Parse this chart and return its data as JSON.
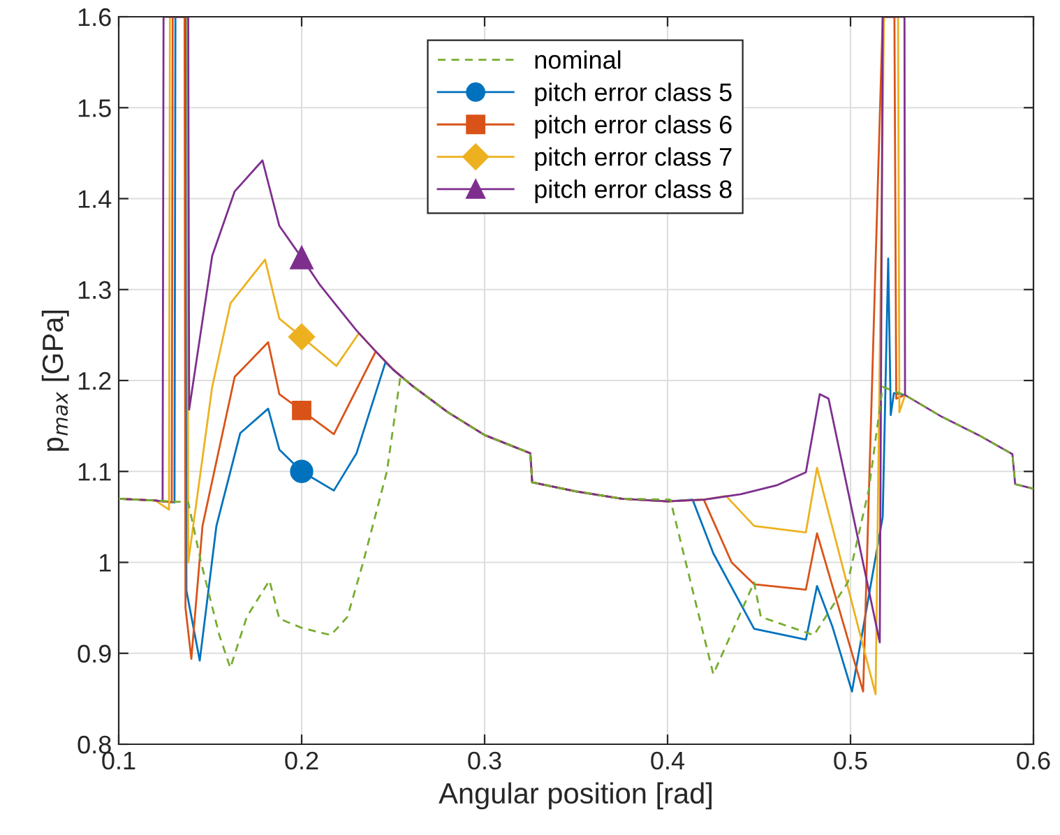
{
  "chart_data": {
    "type": "line",
    "xlabel": "Angular position [rad]",
    "ylabel": "p$_{max}$ [GPa]",
    "xlim": [
      0.1,
      0.6
    ],
    "ylim": [
      0.8,
      1.6
    ],
    "xticks": [
      0.1,
      0.2,
      0.3,
      0.4,
      0.5,
      0.6
    ],
    "yticks": [
      0.8,
      0.9,
      1,
      1.1,
      1.2,
      1.3,
      1.4,
      1.5,
      1.6
    ],
    "grid": true,
    "legend": "top",
    "series": [
      {
        "name": "nominal",
        "color": "#77ac30",
        "line_style": "dashed",
        "x": [
          0.1,
          0.12,
          0.138,
          0.145,
          0.155,
          0.161,
          0.17,
          0.1824,
          0.1878,
          0.2,
          0.216,
          0.225,
          0.2336,
          0.2466,
          0.254,
          0.26,
          0.28,
          0.3,
          0.325,
          0.326,
          0.35,
          0.375,
          0.4015,
          0.425,
          0.4473,
          0.451,
          0.48,
          0.4985,
          0.51,
          0.5176,
          0.5298,
          0.55,
          0.57,
          0.5885,
          0.59,
          0.6
        ],
        "values": [
          1.07,
          1.068,
          1.066,
          1.0,
          0.92,
          0.884,
          0.94,
          0.98,
          0.938,
          0.928,
          0.92,
          0.94,
          1.0,
          1.1,
          1.205,
          1.195,
          1.165,
          1.14,
          1.12,
          1.088,
          1.078,
          1.07,
          1.069,
          0.877,
          0.978,
          0.94,
          0.92,
          0.978,
          1.08,
          1.193,
          1.184,
          1.16,
          1.14,
          1.119,
          1.086,
          1.081
        ]
      },
      {
        "name": "pitch error class 5",
        "color": "#0072bd",
        "x": [
          0.1,
          0.12,
          0.1305,
          0.131,
          0.1365,
          0.137,
          0.1443,
          0.1534,
          0.1664,
          0.1817,
          0.1878,
          0.2,
          0.2176,
          0.23,
          0.2458,
          0.25,
          0.26,
          0.28,
          0.3,
          0.325,
          0.326,
          0.35,
          0.375,
          0.4,
          0.4137,
          0.425,
          0.4473,
          0.4756,
          0.4817,
          0.49,
          0.5008,
          0.5176,
          0.5206,
          0.522,
          0.5237,
          0.5298
        ],
        "values": [
          1.07,
          1.068,
          1.066,
          1.6,
          1.6,
          0.969,
          0.892,
          1.04,
          1.142,
          1.169,
          1.124,
          1.1,
          1.079,
          1.12,
          1.22,
          1.212,
          1.195,
          1.165,
          1.14,
          1.12,
          1.088,
          1.078,
          1.07,
          1.067,
          1.069,
          1.01,
          0.927,
          0.915,
          0.974,
          0.93,
          0.858,
          1.05,
          1.334,
          1.162,
          1.186,
          1.184
        ]
      },
      {
        "name": "pitch error class 6",
        "color": "#d95319",
        "x": [
          0.1,
          0.12,
          0.129,
          0.1295,
          0.136,
          0.1365,
          0.1397,
          0.1458,
          0.1634,
          0.1817,
          0.1878,
          0.2,
          0.2176,
          0.2405,
          0.25,
          0.26,
          0.28,
          0.3,
          0.325,
          0.326,
          0.35,
          0.375,
          0.4,
          0.4198,
          0.435,
          0.4473,
          0.4756,
          0.4817,
          0.5069,
          0.5176,
          0.524,
          0.525,
          0.5298
        ],
        "values": [
          1.07,
          1.068,
          1.066,
          1.6,
          1.6,
          0.95,
          0.894,
          1.04,
          1.204,
          1.242,
          1.185,
          1.167,
          1.141,
          1.232,
          1.212,
          1.195,
          1.165,
          1.14,
          1.12,
          1.088,
          1.078,
          1.07,
          1.067,
          1.069,
          1.0,
          0.976,
          0.97,
          1.032,
          0.858,
          1.6,
          1.6,
          1.18,
          1.184
        ]
      },
      {
        "name": "pitch error class 7",
        "color": "#edb120",
        "x": [
          0.1,
          0.12,
          0.1275,
          0.128,
          0.1375,
          0.138,
          0.1511,
          0.1611,
          0.18,
          0.1878,
          0.2,
          0.219,
          0.2313,
          0.2405,
          0.25,
          0.26,
          0.28,
          0.3,
          0.325,
          0.326,
          0.35,
          0.375,
          0.4,
          0.42,
          0.432,
          0.4473,
          0.4756,
          0.4817,
          0.5137,
          0.5183,
          0.526,
          0.5267,
          0.5298
        ],
        "values": [
          1.07,
          1.068,
          1.058,
          1.6,
          1.6,
          1.0,
          1.193,
          1.285,
          1.333,
          1.268,
          1.248,
          1.216,
          1.252,
          1.232,
          1.212,
          1.195,
          1.165,
          1.14,
          1.12,
          1.088,
          1.078,
          1.07,
          1.067,
          1.069,
          1.073,
          1.04,
          1.033,
          1.104,
          0.855,
          1.6,
          1.6,
          1.165,
          1.184
        ]
      },
      {
        "name": "pitch error class 8",
        "color": "#7e2f8e",
        "x": [
          0.1,
          0.12,
          0.124,
          0.1245,
          0.138,
          0.1385,
          0.1511,
          0.1634,
          0.1786,
          0.1878,
          0.2,
          0.21,
          0.22,
          0.23,
          0.2405,
          0.25,
          0.26,
          0.28,
          0.3,
          0.325,
          0.326,
          0.35,
          0.375,
          0.4,
          0.42,
          0.44,
          0.46,
          0.4756,
          0.4832,
          0.488,
          0.516,
          0.5176,
          0.5295,
          0.5298,
          0.55,
          0.57,
          0.5885,
          0.59,
          0.6
        ],
        "values": [
          1.07,
          1.068,
          1.067,
          1.6,
          1.6,
          1.168,
          1.337,
          1.408,
          1.442,
          1.37,
          1.335,
          1.305,
          1.28,
          1.255,
          1.232,
          1.212,
          1.195,
          1.165,
          1.14,
          1.12,
          1.088,
          1.078,
          1.07,
          1.067,
          1.069,
          1.075,
          1.085,
          1.099,
          1.185,
          1.18,
          0.912,
          1.6,
          1.6,
          1.184,
          1.16,
          1.14,
          1.119,
          1.086,
          1.081
        ]
      },
      {
        "type": "scatter",
        "color": "#0072bd",
        "marker": "circle",
        "x": [
          0.2
        ],
        "values": [
          1.1
        ]
      },
      {
        "type": "scatter",
        "color": "#d95319",
        "marker": "square",
        "x": [
          0.2
        ],
        "values": [
          1.167
        ]
      },
      {
        "type": "scatter",
        "color": "#edb120",
        "marker": "diamond",
        "x": [
          0.2
        ],
        "values": [
          1.248
        ]
      },
      {
        "type": "scatter",
        "color": "#7e2f8e",
        "marker": "triangle",
        "x": [
          0.2
        ],
        "values": [
          1.335
        ]
      }
    ]
  }
}
